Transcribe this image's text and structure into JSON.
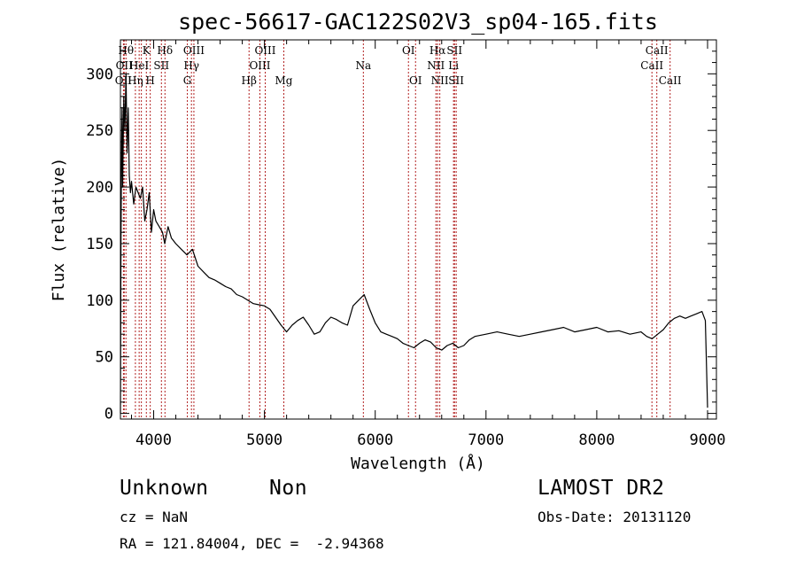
{
  "chart_data": {
    "type": "line",
    "title": "spec-56617-GAC122S02V3_sp04-165.fits",
    "xlabel": "Wavelength (Å)",
    "ylabel": "Flux (relative)",
    "xlim": [
      3700,
      9080
    ],
    "ylim": [
      -5,
      330
    ],
    "x_ticks": [
      4000,
      5000,
      6000,
      7000,
      8000,
      9000
    ],
    "y_ticks": [
      0,
      50,
      100,
      150,
      200,
      250,
      300
    ],
    "grid": false,
    "line_color": "#000000",
    "marker_color": "#b22222",
    "series": [
      {
        "x": [
          3700,
          3705,
          3710,
          3715,
          3720,
          3730,
          3740,
          3750,
          3760,
          3770,
          3780,
          3790,
          3800,
          3820,
          3840,
          3860,
          3880,
          3900,
          3920,
          3940,
          3960,
          3980,
          4000,
          4020,
          4050,
          4080,
          4100,
          4130,
          4160,
          4200,
          4250,
          4300,
          4350,
          4400,
          4450,
          4500,
          4550,
          4600,
          4650,
          4700,
          4750,
          4800,
          4850,
          4900,
          4950,
          5000,
          5050,
          5100,
          5150,
          5200,
          5250,
          5300,
          5350,
          5400,
          5450,
          5500,
          5550,
          5600,
          5650,
          5700,
          5750,
          5800,
          5850,
          5900,
          5950,
          6000,
          6050,
          6100,
          6150,
          6200,
          6250,
          6300,
          6350,
          6400,
          6450,
          6500,
          6550,
          6600,
          6650,
          6700,
          6750,
          6800,
          6850,
          6900,
          7000,
          7100,
          7200,
          7300,
          7400,
          7500,
          7600,
          7700,
          7800,
          7900,
          8000,
          8100,
          8200,
          8300,
          8400,
          8450,
          8500,
          8550,
          8600,
          8650,
          8700,
          8750,
          8800,
          8850,
          8900,
          8950,
          8980,
          9000
        ],
        "y": [
          0,
          150,
          240,
          270,
          200,
          280,
          250,
          300,
          230,
          270,
          210,
          195,
          205,
          185,
          200,
          195,
          190,
          200,
          170,
          180,
          195,
          160,
          180,
          170,
          165,
          160,
          150,
          165,
          155,
          150,
          145,
          140,
          145,
          130,
          125,
          120,
          118,
          115,
          112,
          110,
          105,
          103,
          100,
          97,
          96,
          95,
          92,
          85,
          78,
          72,
          78,
          82,
          85,
          78,
          70,
          72,
          80,
          85,
          83,
          80,
          78,
          95,
          100,
          105,
          92,
          80,
          72,
          70,
          68,
          66,
          62,
          60,
          58,
          62,
          65,
          63,
          58,
          56,
          60,
          62,
          58,
          60,
          65,
          68,
          70,
          72,
          70,
          68,
          70,
          72,
          74,
          76,
          72,
          74,
          76,
          72,
          73,
          70,
          72,
          68,
          66,
          70,
          74,
          80,
          84,
          86,
          84,
          86,
          88,
          90,
          82,
          5
        ]
      }
    ],
    "lines": [
      {
        "x": 3727,
        "label": "OII",
        "row": 2
      },
      {
        "x": 3734,
        "label": "OII",
        "row": 1
      },
      {
        "x": 3750,
        "label": "Hθ",
        "row": 0
      },
      {
        "x": 3835,
        "label": "Hη",
        "row": 2
      },
      {
        "x": 3869,
        "label": "HeI",
        "row": 1
      },
      {
        "x": 3889,
        "label": "",
        "row": -1
      },
      {
        "x": 3934,
        "label": "K",
        "row": 0
      },
      {
        "x": 3969,
        "label": "H",
        "row": 2
      },
      {
        "x": 4070,
        "label": "SII",
        "row": 1
      },
      {
        "x": 4102,
        "label": "Hδ",
        "row": 0
      },
      {
        "x": 4304,
        "label": "G",
        "row": 2
      },
      {
        "x": 4341,
        "label": "Hγ",
        "row": 1
      },
      {
        "x": 4363,
        "label": "OIII",
        "row": 0
      },
      {
        "x": 4861,
        "label": "Hβ",
        "row": 2
      },
      {
        "x": 4959,
        "label": "OIII",
        "row": 1
      },
      {
        "x": 5007,
        "label": "OIII",
        "row": 0
      },
      {
        "x": 5175,
        "label": "Mg",
        "row": 2
      },
      {
        "x": 5893,
        "label": "Na",
        "row": 1
      },
      {
        "x": 6300,
        "label": "OI",
        "row": 0
      },
      {
        "x": 6364,
        "label": "OI",
        "row": 2
      },
      {
        "x": 6548,
        "label": "NII",
        "row": 1
      },
      {
        "x": 6563,
        "label": "Hα",
        "row": 0
      },
      {
        "x": 6583,
        "label": "NII",
        "row": 2
      },
      {
        "x": 6707,
        "label": "Li",
        "row": 1
      },
      {
        "x": 6716,
        "label": "SII",
        "row": 0
      },
      {
        "x": 6731,
        "label": "SII",
        "row": 2
      },
      {
        "x": 8498,
        "label": "CaII",
        "row": 1
      },
      {
        "x": 8542,
        "label": "CaII",
        "row": 0
      },
      {
        "x": 8662,
        "label": "CaII",
        "row": 2
      }
    ]
  },
  "info": {
    "class": "Unknown",
    "subclass": "Non",
    "cz": "cz = NaN",
    "radec": "RA = 121.84004, DEC =  -2.94368",
    "survey": "LAMOST DR2",
    "obs_date": "Obs-Date: 20131120"
  }
}
